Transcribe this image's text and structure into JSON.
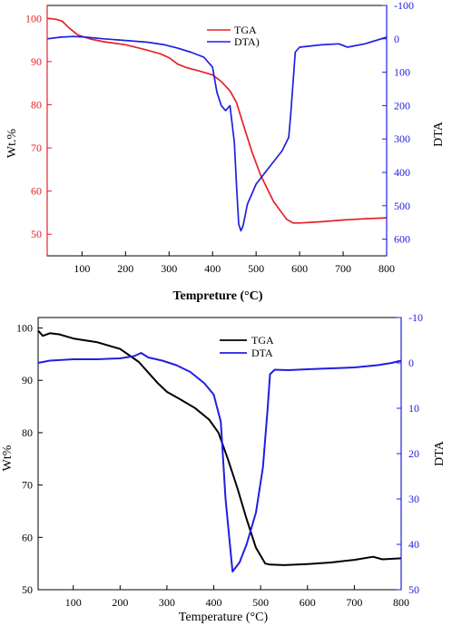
{
  "chart_data": [
    {
      "type": "line",
      "title": "",
      "xlabel": "Tempreture (°C)",
      "ylabel_left": "Wt.%",
      "ylabel_right": "DTA",
      "xlim": [
        20,
        800
      ],
      "ylim_left": [
        45,
        103
      ],
      "ylim_right": [
        650,
        -100
      ],
      "right_axis_inverted": true,
      "x_ticks": [
        100,
        200,
        300,
        400,
        500,
        600,
        700,
        800
      ],
      "y_left_ticks": [
        50,
        60,
        70,
        80,
        90,
        100
      ],
      "y_right_ticks": [
        -100,
        0,
        100,
        200,
        300,
        400,
        500,
        600
      ],
      "legend": {
        "placement": "top-center"
      },
      "colors": {
        "left_axis": "#e8202a",
        "right_axis": "#1f1fe0"
      },
      "series": [
        {
          "name": "TGA",
          "axis": "left",
          "color": "#e8202a",
          "x": [
            20,
            40,
            55,
            70,
            90,
            120,
            150,
            200,
            240,
            280,
            300,
            320,
            340,
            370,
            400,
            420,
            440,
            455,
            470,
            490,
            510,
            540,
            570,
            585,
            600,
            650,
            700,
            750,
            800
          ],
          "y": [
            100,
            99.8,
            99.3,
            97.8,
            96.2,
            95.2,
            94.6,
            93.9,
            92.9,
            91.8,
            90.9,
            89.4,
            88.6,
            87.8,
            86.9,
            85.4,
            83.2,
            80.5,
            75.6,
            69.2,
            63.8,
            57.6,
            53.5,
            52.6,
            52.6,
            52.9,
            53.3,
            53.6,
            53.8
          ]
        },
        {
          "name": "DTA)",
          "axis": "right",
          "color": "#1f1fe0",
          "x": [
            20,
            50,
            80,
            110,
            150,
            200,
            250,
            290,
            320,
            350,
            380,
            400,
            410,
            420,
            430,
            440,
            450,
            455,
            460,
            465,
            470,
            480,
            500,
            530,
            560,
            575,
            580,
            590,
            600,
            650,
            690,
            710,
            750,
            800
          ],
          "y": [
            0,
            -5,
            -7,
            -5,
            0,
            5,
            10,
            18,
            28,
            40,
            55,
            85,
            160,
            200,
            215,
            200,
            310,
            440,
            555,
            575,
            560,
            495,
            435,
            385,
            335,
            295,
            220,
            40,
            25,
            18,
            15,
            25,
            15,
            -5
          ]
        }
      ]
    },
    {
      "type": "line",
      "title": "",
      "xlabel": "Temperature (°C)",
      "ylabel_left": "Wt%",
      "ylabel_right": "DTA",
      "xlim": [
        25,
        800
      ],
      "ylim_left": [
        50,
        102
      ],
      "ylim_right": [
        50,
        -10
      ],
      "right_axis_inverted": true,
      "x_ticks": [
        100,
        200,
        300,
        400,
        500,
        600,
        700,
        800
      ],
      "y_left_ticks": [
        50,
        60,
        70,
        80,
        90,
        100
      ],
      "y_right_ticks": [
        -10,
        0,
        10,
        20,
        30,
        40,
        50
      ],
      "legend": {
        "placement": "top-center"
      },
      "colors": {
        "left_axis": "#000000",
        "right_axis": "#1f1fe0"
      },
      "series": [
        {
          "name": "TGA",
          "axis": "left",
          "color": "#000000",
          "x": [
            25,
            35,
            50,
            70,
            100,
            150,
            200,
            240,
            260,
            280,
            300,
            330,
            360,
            390,
            410,
            430,
            450,
            470,
            490,
            510,
            520,
            550,
            600,
            650,
            700,
            740,
            760,
            800
          ],
          "y": [
            99.5,
            98.5,
            99,
            98.8,
            98,
            97.3,
            96,
            93.5,
            91.5,
            89.5,
            87.8,
            86.3,
            84.7,
            82.5,
            80,
            75,
            69.5,
            63.5,
            58,
            55,
            54.8,
            54.7,
            54.9,
            55.2,
            55.7,
            56.3,
            55.8,
            56
          ]
        },
        {
          "name": "DTA",
          "axis": "right",
          "color": "#1f1fe0",
          "x": [
            25,
            50,
            100,
            150,
            200,
            230,
            245,
            260,
            290,
            320,
            350,
            380,
            400,
            410,
            415,
            425,
            440,
            455,
            470,
            490,
            505,
            515,
            520,
            530,
            560,
            600,
            650,
            700,
            750,
            780,
            800
          ],
          "y": [
            0,
            -0.5,
            -0.8,
            -0.8,
            -1,
            -1.5,
            -2.2,
            -1.2,
            -0.5,
            0.5,
            2,
            4.5,
            7,
            11,
            13,
            30,
            46,
            44,
            40,
            33,
            23,
            10,
            2.5,
            1.5,
            1.6,
            1.4,
            1.2,
            1,
            0.5,
            0,
            -0.5
          ]
        }
      ]
    }
  ]
}
